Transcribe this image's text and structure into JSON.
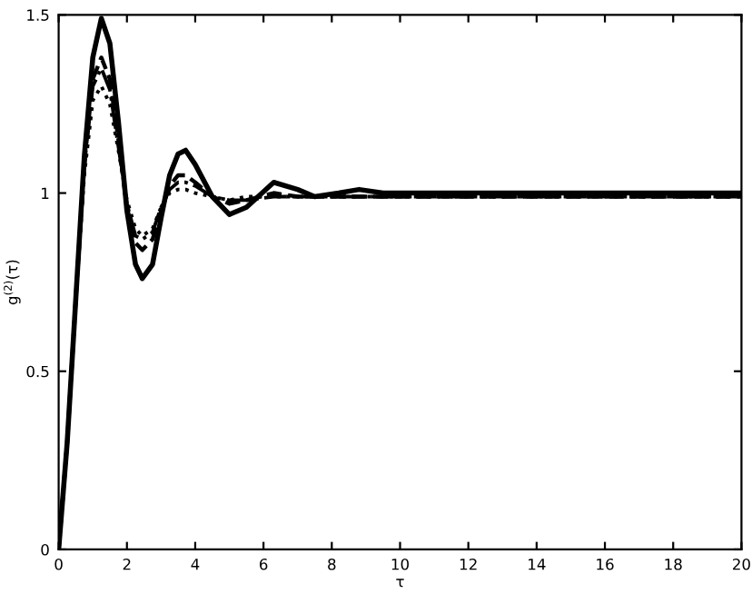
{
  "chart_data": {
    "type": "line",
    "xlabel": "τ",
    "ylabel": "g$^{(2)}$(τ)",
    "x": [
      0,
      0.25,
      0.5,
      0.75,
      1.0,
      1.25,
      1.5,
      1.75,
      2.0,
      2.25,
      2.45,
      2.75,
      3.0,
      3.25,
      3.5,
      3.72,
      4.0,
      4.5,
      5.0,
      5.5,
      6.3,
      7.0,
      7.5,
      8.2,
      8.8,
      9.5,
      10,
      12,
      14,
      16,
      18,
      20
    ],
    "series": [
      {
        "color": "#000000",
        "line_style": "solid",
        "values": [
          0,
          0.3,
          0.7,
          1.1,
          1.38,
          1.49,
          1.42,
          1.2,
          0.95,
          0.8,
          0.76,
          0.8,
          0.93,
          1.05,
          1.11,
          1.12,
          1.08,
          0.99,
          0.94,
          0.96,
          1.03,
          1.01,
          0.99,
          1.0,
          1.01,
          1.0,
          1.0,
          1.0,
          1.0,
          1.0,
          1.0,
          1.0
        ]
      },
      {
        "color": "#000000",
        "line_style": "dashed",
        "values": [
          0,
          0.3,
          0.7,
          1.08,
          1.32,
          1.38,
          1.32,
          1.15,
          0.96,
          0.86,
          0.84,
          0.87,
          0.95,
          1.02,
          1.05,
          1.05,
          1.03,
          0.99,
          0.97,
          0.98,
          1.0,
          0.99,
          0.99,
          0.99,
          0.99,
          0.99,
          0.99,
          0.99,
          0.99,
          0.99,
          0.99,
          0.99
        ]
      },
      {
        "color": "#000000",
        "line_style": "dashdot",
        "values": [
          0,
          0.3,
          0.7,
          1.07,
          1.3,
          1.35,
          1.29,
          1.13,
          0.97,
          0.88,
          0.87,
          0.89,
          0.96,
          1.01,
          1.03,
          1.03,
          1.02,
          0.99,
          0.98,
          0.98,
          0.99,
          0.99,
          0.99,
          0.99,
          0.99,
          0.99,
          0.99,
          0.99,
          0.99,
          0.99,
          0.99,
          0.99
        ]
      },
      {
        "color": "#000000",
        "line_style": "dotted",
        "values": [
          0,
          0.3,
          0.7,
          1.05,
          1.26,
          1.3,
          1.25,
          1.12,
          0.98,
          0.9,
          0.88,
          0.9,
          0.96,
          1.0,
          1.01,
          1.01,
          1.0,
          0.99,
          0.98,
          0.99,
          0.99,
          0.99,
          0.99,
          0.99,
          0.99,
          0.99,
          0.99,
          0.99,
          0.99,
          0.99,
          0.99,
          0.99
        ]
      }
    ],
    "xlim": [
      0,
      20
    ],
    "xticks": [
      0,
      2,
      4,
      6,
      8,
      10,
      12,
      14,
      16,
      18,
      20
    ],
    "ylim": [
      0,
      1.5
    ],
    "yticks": [
      0,
      0.5,
      1,
      1.5
    ],
    "grid": false,
    "legend": false
  }
}
